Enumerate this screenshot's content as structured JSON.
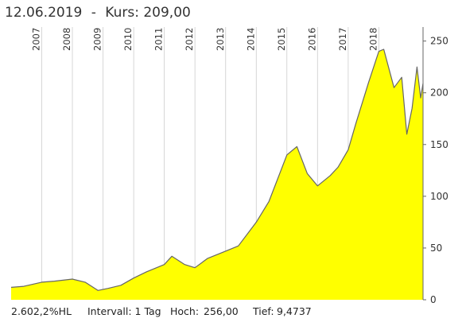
{
  "header": {
    "date": "12.06.2019",
    "separator": "-",
    "price_label": "Kurs:",
    "price_value": "209,00"
  },
  "footer": {
    "change": "2.602,2%HL",
    "interval": "Intervall: 1 Tag",
    "high_label": "Hoch:",
    "high_value": "256,00",
    "low_label": "Tief:",
    "low_value": "9,4737"
  },
  "colors": {
    "fill": "#ffff00",
    "line": "#666666",
    "text": "#333333",
    "grid": "#cccccc"
  },
  "chart_data": {
    "type": "area",
    "title": "",
    "xlabel": "",
    "ylabel": "",
    "x_ticks": [
      "2007",
      "2008",
      "2009",
      "2010",
      "2011",
      "2012",
      "2013",
      "2014",
      "2015",
      "2016",
      "2017",
      "2018"
    ],
    "y_ticks": [
      0,
      50,
      100,
      150,
      200,
      250
    ],
    "ylim": [
      0,
      262
    ],
    "xlim": [
      "2006-01-01",
      "2019-06-12"
    ],
    "grid": "vertical",
    "series": [
      {
        "x": [
          "2006-01-01",
          "2006-06-01",
          "2007-01-01",
          "2007-06-01",
          "2008-01-01",
          "2008-06-01",
          "2008-11-01",
          "2009-03-01",
          "2009-08-01",
          "2010-01-01",
          "2010-06-01",
          "2011-01-01",
          "2011-04-01",
          "2011-09-01",
          "2012-01-01",
          "2012-06-01",
          "2013-01-01",
          "2013-06-01",
          "2014-01-01",
          "2014-06-01",
          "2015-01-01",
          "2015-05-01",
          "2015-09-01",
          "2016-01-01",
          "2016-06-01",
          "2016-09-01",
          "2017-01-01",
          "2017-04-01",
          "2017-09-01",
          "2018-01-01",
          "2018-03-01",
          "2018-07-01",
          "2018-10-01",
          "2018-12-01",
          "2019-02-01",
          "2019-04-01",
          "2019-05-15",
          "2019-06-12"
        ],
        "y": [
          12,
          13,
          17,
          18,
          20,
          17,
          9,
          11,
          14,
          21,
          27,
          34,
          42,
          34,
          31,
          40,
          47,
          52,
          75,
          95,
          140,
          148,
          122,
          110,
          120,
          128,
          145,
          170,
          210,
          240,
          242,
          205,
          215,
          160,
          185,
          225,
          195,
          209
        ]
      }
    ]
  }
}
